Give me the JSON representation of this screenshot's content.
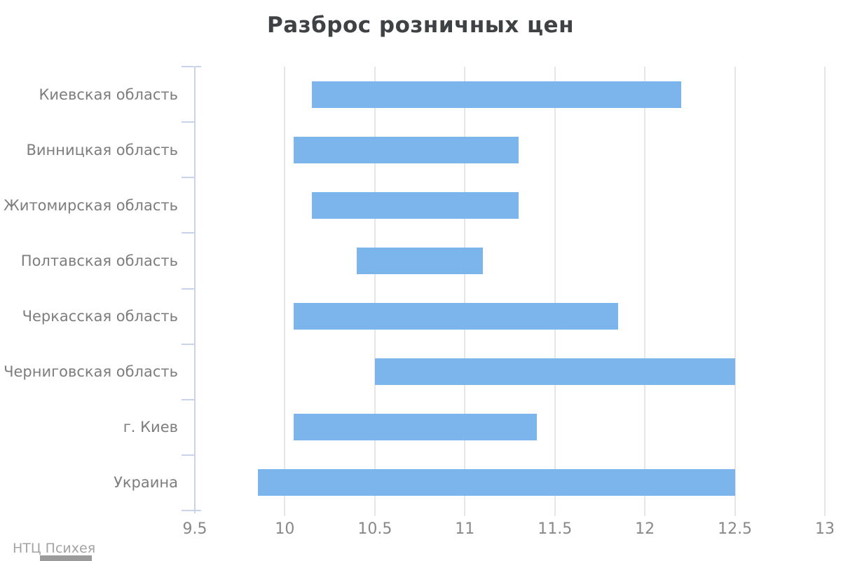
{
  "title": "Разброс розничных цен",
  "source": "НТЦ Психея",
  "colors": {
    "bar": "#7cb5ec",
    "axis": "#c9d4ea",
    "grid": "#e6e6e6",
    "title_text": "#3f4245",
    "category_text": "#7d7d7d",
    "tick_text": "#888888",
    "source_text": "#a3a3a3"
  },
  "chart_data": {
    "type": "bar",
    "subtype": "horizontal-range-bars",
    "title": "Разброс розничных цен",
    "categories": [
      "Киевская область",
      "Винницкая область",
      "Житомирская область",
      "Полтавская область",
      "Черкасская область",
      "Черниговская область",
      "г. Киев",
      "Украина"
    ],
    "series": [
      {
        "ranges": [
          [
            10.15,
            12.2
          ],
          [
            10.05,
            11.3
          ],
          [
            10.15,
            11.3
          ],
          [
            10.4,
            11.1
          ],
          [
            10.05,
            11.85
          ],
          [
            10.5,
            12.5
          ],
          [
            10.05,
            11.4
          ],
          [
            9.85,
            12.5
          ]
        ]
      }
    ],
    "xlim": [
      9.5,
      13
    ],
    "xticks": [
      9.5,
      10,
      10.5,
      11,
      11.5,
      12,
      12.5,
      13
    ],
    "xtick_labels": [
      "9.5",
      "10",
      "10.5",
      "11",
      "11.5",
      "12",
      "12.5",
      "13"
    ],
    "xlabel": "",
    "ylabel": "",
    "grid": "vertical",
    "legend": "none",
    "annotation": "НТЦ Психея"
  }
}
